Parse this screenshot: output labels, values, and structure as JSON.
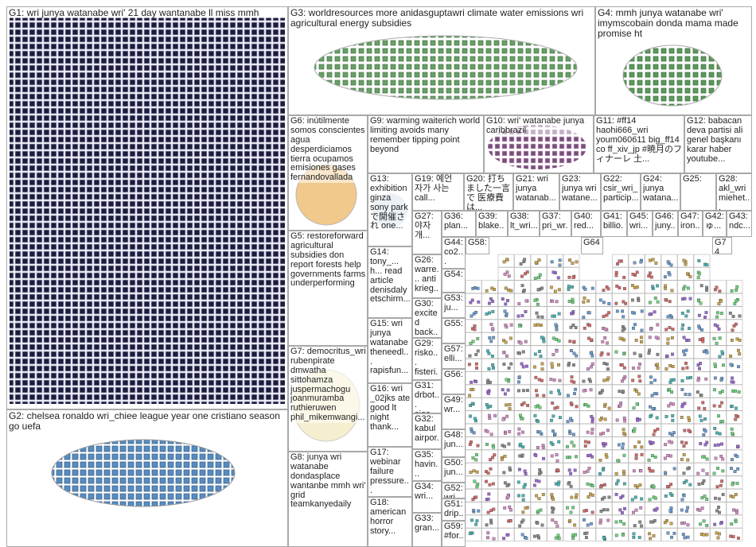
{
  "groups": [
    {
      "label": "G1: wri junya watanabe wri' 21 day wantanabe ll miss mmh"
    },
    {
      "label": "G2: chelsea ronaldo wri_chiee league year one cristiano season go uefa"
    },
    {
      "label": "G3: worldresources more anidasguptawri climate water emissions wri agricultural energy subsidies"
    },
    {
      "label": "G4: mmh junya watanabe wri' imymscobain donda mama made promise ht"
    },
    {
      "label": "G6: inútilmente somos conscientes agua desperdiciamos tierra ocupamos emisiones gases fernandovallada"
    },
    {
      "label": "G9: warming waiterich world limiting avoids many remember tipping point beyond"
    },
    {
      "label": "G10: wri' watanabe junya caribbrazil"
    },
    {
      "label": "G11: #ff14 haohi666_wri youm060611 big_ff14 co ff_xiv_jp #暁月のフィナーレ 土..."
    },
    {
      "label": "G12: babacan deva partisi ali genel başkanı karar haber youtube..."
    },
    {
      "label": "G5: restoreforward agricultural subsidies don report forests help governments farms underperforming"
    },
    {
      "label": "G7: democritus_wri rubenpirate dmwatha sittohamza juspermachogu joanmuramba ruthieruwen phil_mikemwangi..."
    },
    {
      "label": "G8: junya wri watanabe dondasplace wantanbe mmh wri' grid teamkanyedaily"
    },
    {
      "label": "G13: exhibition ginza sony park で開催され one..."
    },
    {
      "label": "G14: tony_... h... read article denisdaly etschirm..."
    },
    {
      "label": "G15: wri junya watanabe theneedl... rapisfun..."
    },
    {
      "label": "G16: wri _02jks ate good lt night thank..."
    },
    {
      "label": "G17: webinar failure pressure..."
    },
    {
      "label": "G18: american horror story..."
    },
    {
      "label": "G19: 예언 자가 사는 call..."
    },
    {
      "label": "G20: 打ちました一言で 医療費は..."
    },
    {
      "label": "G21: wri junya watanab..."
    },
    {
      "label": "G23: junya wri watane..."
    },
    {
      "label": "G22: csir_wri_ particip..."
    },
    {
      "label": "G24: junya watana..."
    },
    {
      "label": "G25:"
    },
    {
      "label": "G28: akl_wri miehet..."
    },
    {
      "label": "G27: 야자 개..."
    },
    {
      "label": "G26: warre... anti krieg..."
    },
    {
      "label": "G30: excited back..."
    },
    {
      "label": "G29: risko... fisteri..."
    },
    {
      "label": "G31: drbot... siga..."
    },
    {
      "label": "G32: kabul airpor..."
    },
    {
      "label": "G35: havin..."
    },
    {
      "label": "G34: wri..."
    },
    {
      "label": "G33: gran..."
    },
    {
      "label": "G36: plan..."
    },
    {
      "label": "G39: blake..."
    },
    {
      "label": "G38: lt_wri..."
    },
    {
      "label": "G37: pri_wr..."
    },
    {
      "label": "G40: red..."
    },
    {
      "label": "G41: billio..."
    },
    {
      "label": "G45: wri..."
    },
    {
      "label": "G46: juny..."
    },
    {
      "label": "G47: iron..."
    },
    {
      "label": "G42: ゅ..."
    },
    {
      "label": "G43: ndc..."
    },
    {
      "label": "G44: co2..."
    },
    {
      "label": "G58:"
    },
    {
      "label": "G64"
    },
    {
      "label": "G74"
    },
    {
      "label": "G54:"
    },
    {
      "label": "G53: ju..."
    },
    {
      "label": "G55:"
    },
    {
      "label": "G57: elli..."
    },
    {
      "label": "G56:"
    },
    {
      "label": "G49: wr..."
    },
    {
      "label": "G48: jun..."
    },
    {
      "label": "G50: jun..."
    },
    {
      "label": "G52: wri..."
    },
    {
      "label": "G51: drip..."
    },
    {
      "label": "G59: #for..."
    }
  ]
}
